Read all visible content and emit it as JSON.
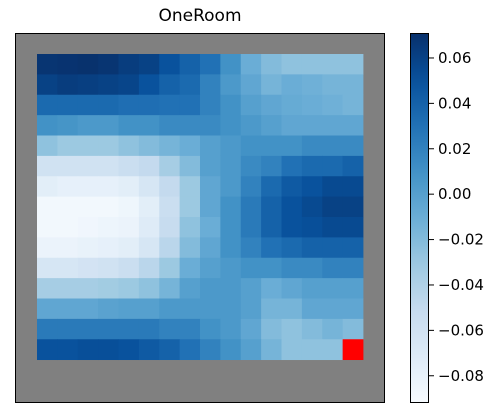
{
  "chart_data": {
    "type": "heatmap",
    "title": "OneRoom",
    "xlabel": "",
    "ylabel": "",
    "grid": false,
    "colormap": "Blues",
    "clim": [
      -0.092,
      0.071
    ],
    "background_color": "#808080",
    "highlight_color": "#ff0000",
    "highlight_cell": [
      15,
      14
    ],
    "colorbar": {
      "position": "right",
      "ticks": [
        0.06,
        0.04,
        0.02,
        0.0,
        -0.02,
        -0.04,
        -0.06,
        -0.08
      ],
      "tick_labels": [
        "0.06",
        "0.04",
        "0.02",
        "0.00",
        "−0.02",
        "−0.04",
        "−0.06",
        "−0.08"
      ]
    },
    "rows": [
      [
        0.068,
        0.069,
        0.07,
        0.068,
        0.063,
        0.06,
        0.05,
        0.04,
        0.03,
        0.01,
        -0.01,
        -0.02,
        -0.025,
        -0.025,
        -0.025,
        -0.025
      ],
      [
        0.06,
        0.063,
        0.062,
        0.06,
        0.058,
        0.05,
        0.04,
        0.035,
        0.02,
        0.005,
        -0.005,
        -0.015,
        -0.01,
        -0.012,
        -0.015,
        -0.015
      ],
      [
        0.035,
        0.035,
        0.035,
        0.035,
        0.032,
        0.032,
        0.03,
        0.03,
        0.02,
        0.01,
        0.0,
        -0.005,
        -0.008,
        -0.01,
        -0.012,
        -0.015
      ],
      [
        0.01,
        0.008,
        0.005,
        0.005,
        0.01,
        0.01,
        0.015,
        0.015,
        0.015,
        0.01,
        0.005,
        0.0,
        -0.005,
        -0.005,
        -0.005,
        -0.005
      ],
      [
        -0.025,
        -0.03,
        -0.03,
        -0.03,
        -0.025,
        -0.02,
        -0.015,
        -0.01,
        0.0,
        0.005,
        0.01,
        0.01,
        0.01,
        0.015,
        0.015,
        0.015
      ],
      [
        -0.06,
        -0.06,
        -0.06,
        -0.06,
        -0.055,
        -0.05,
        -0.035,
        -0.02,
        0.0,
        0.005,
        0.015,
        0.02,
        0.03,
        0.035,
        0.035,
        0.04
      ],
      [
        -0.075,
        -0.078,
        -0.078,
        -0.078,
        -0.075,
        -0.065,
        -0.05,
        -0.03,
        -0.005,
        0.005,
        0.02,
        0.035,
        0.045,
        0.05,
        0.055,
        0.055
      ],
      [
        -0.088,
        -0.088,
        -0.088,
        -0.088,
        -0.085,
        -0.075,
        -0.055,
        -0.03,
        -0.005,
        0.01,
        0.025,
        0.04,
        0.05,
        0.055,
        0.06,
        0.06
      ],
      [
        -0.088,
        -0.088,
        -0.086,
        -0.084,
        -0.082,
        -0.072,
        -0.052,
        -0.025,
        -0.01,
        0.01,
        0.025,
        0.04,
        0.05,
        0.052,
        0.055,
        0.055
      ],
      [
        -0.082,
        -0.082,
        -0.08,
        -0.078,
        -0.075,
        -0.065,
        -0.045,
        -0.02,
        -0.005,
        0.01,
        0.02,
        0.03,
        0.035,
        0.04,
        0.04,
        0.04
      ],
      [
        -0.065,
        -0.065,
        -0.062,
        -0.06,
        -0.055,
        -0.045,
        -0.03,
        -0.01,
        0.0,
        0.005,
        0.01,
        0.01,
        0.015,
        0.015,
        0.02,
        0.02
      ],
      [
        -0.035,
        -0.035,
        -0.035,
        -0.033,
        -0.03,
        -0.025,
        -0.015,
        0.0,
        0.005,
        0.005,
        0.0,
        -0.01,
        -0.005,
        0.0,
        0.0,
        0.0
      ],
      [
        -0.005,
        -0.005,
        -0.005,
        -0.002,
        0.0,
        0.0,
        0.005,
        0.005,
        0.005,
        0.005,
        0.0,
        -0.015,
        -0.015,
        -0.005,
        -0.005,
        -0.005
      ],
      [
        0.025,
        0.025,
        0.025,
        0.025,
        0.025,
        0.025,
        0.02,
        0.02,
        0.01,
        0.005,
        -0.005,
        -0.02,
        -0.025,
        -0.02,
        -0.015,
        -0.02
      ],
      [
        0.05,
        0.05,
        0.052,
        0.052,
        0.05,
        0.045,
        0.04,
        0.03,
        0.02,
        0.01,
        0.0,
        -0.015,
        -0.025,
        -0.025,
        -0.025,
        0.0
      ]
    ]
  }
}
